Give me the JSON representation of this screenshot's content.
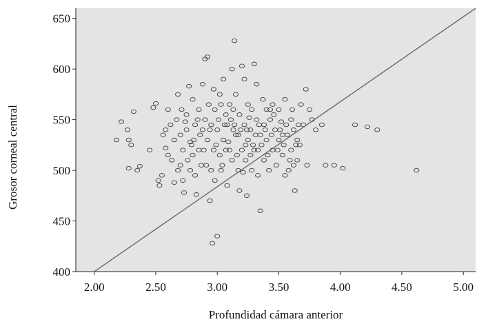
{
  "chart_data": {
    "type": "scatter",
    "title": "",
    "xlabel": "Profundidad cámara anterior",
    "ylabel": "Grosor corneal central",
    "xlim": [
      1.85,
      5.1
    ],
    "ylim": [
      400,
      660
    ],
    "x_ticks": [
      "2.00",
      "2.50",
      "3.00",
      "3.50",
      "4.00",
      "4.50",
      "5.00"
    ],
    "x_tick_values": [
      2.0,
      2.5,
      3.0,
      3.5,
      4.0,
      4.5,
      5.0
    ],
    "y_ticks": [
      "400",
      "450",
      "500",
      "550",
      "600",
      "650"
    ],
    "y_tick_values": [
      400,
      450,
      500,
      550,
      600,
      650
    ],
    "grid": false,
    "background_color": "#e4e4e4",
    "marker_color": "#3a3a3a",
    "line_color": "#6a6a6a",
    "reference_line": {
      "x": [
        2.0,
        5.1
      ],
      "y": [
        400,
        660
      ]
    },
    "series": [
      {
        "points": [
          [
            2.18,
            530
          ],
          [
            2.22,
            548
          ],
          [
            2.27,
            540
          ],
          [
            2.28,
            530
          ],
          [
            2.3,
            525
          ],
          [
            2.32,
            558
          ],
          [
            2.35,
            500
          ],
          [
            2.37,
            504
          ],
          [
            2.28,
            502
          ],
          [
            2.45,
            520
          ],
          [
            2.48,
            562
          ],
          [
            2.5,
            566
          ],
          [
            2.52,
            490
          ],
          [
            2.53,
            485
          ],
          [
            2.55,
            495
          ],
          [
            2.56,
            535
          ],
          [
            2.58,
            540
          ],
          [
            2.58,
            522
          ],
          [
            2.6,
            560
          ],
          [
            2.6,
            515
          ],
          [
            2.62,
            545
          ],
          [
            2.63,
            510
          ],
          [
            2.65,
            488
          ],
          [
            2.65,
            530
          ],
          [
            2.67,
            550
          ],
          [
            2.68,
            575
          ],
          [
            2.7,
            505
          ],
          [
            2.7,
            535
          ],
          [
            2.72,
            520
          ],
          [
            2.72,
            490
          ],
          [
            2.73,
            478
          ],
          [
            2.75,
            555
          ],
          [
            2.75,
            540
          ],
          [
            2.77,
            583
          ],
          [
            2.78,
            528
          ],
          [
            2.78,
            500
          ],
          [
            2.8,
            515
          ],
          [
            2.8,
            570
          ],
          [
            2.82,
            545
          ],
          [
            2.82,
            495
          ],
          [
            2.83,
            476
          ],
          [
            2.85,
            560
          ],
          [
            2.85,
            520
          ],
          [
            2.87,
            505
          ],
          [
            2.88,
            540
          ],
          [
            2.88,
            585
          ],
          [
            2.9,
            610
          ],
          [
            2.9,
            550
          ],
          [
            2.92,
            612
          ],
          [
            2.92,
            530
          ],
          [
            2.93,
            565
          ],
          [
            2.94,
            470
          ],
          [
            2.95,
            500
          ],
          [
            2.95,
            545
          ],
          [
            2.96,
            428
          ],
          [
            2.97,
            520
          ],
          [
            2.98,
            560
          ],
          [
            2.98,
            490
          ],
          [
            3.0,
            435
          ],
          [
            3.0,
            540
          ],
          [
            3.02,
            575
          ],
          [
            3.02,
            515
          ],
          [
            3.03,
            500
          ],
          [
            3.05,
            530
          ],
          [
            3.05,
            590
          ],
          [
            3.07,
            555
          ],
          [
            3.08,
            545
          ],
          [
            3.08,
            485
          ],
          [
            3.1,
            520
          ],
          [
            3.1,
            565
          ],
          [
            3.12,
            600
          ],
          [
            3.12,
            510
          ],
          [
            3.13,
            540
          ],
          [
            3.14,
            628
          ],
          [
            3.15,
            535
          ],
          [
            3.15,
            575
          ],
          [
            3.17,
            500
          ],
          [
            3.18,
            555
          ],
          [
            3.18,
            480
          ],
          [
            3.2,
            603
          ],
          [
            3.2,
            520
          ],
          [
            3.22,
            545
          ],
          [
            3.22,
            590
          ],
          [
            3.23,
            510
          ],
          [
            3.24,
            475
          ],
          [
            3.25,
            565
          ],
          [
            3.25,
            530
          ],
          [
            3.27,
            540
          ],
          [
            3.28,
            500
          ],
          [
            3.28,
            560
          ],
          [
            3.3,
            605
          ],
          [
            3.3,
            520
          ],
          [
            3.32,
            550
          ],
          [
            3.32,
            585
          ],
          [
            3.33,
            495
          ],
          [
            3.35,
            460
          ],
          [
            3.35,
            535
          ],
          [
            3.37,
            570
          ],
          [
            3.38,
            545
          ],
          [
            3.38,
            510
          ],
          [
            3.4,
            560
          ],
          [
            3.4,
            530
          ],
          [
            3.42,
            500
          ],
          [
            3.43,
            550
          ],
          [
            3.45,
            520
          ],
          [
            3.45,
            565
          ],
          [
            3.47,
            540
          ],
          [
            3.48,
            505
          ],
          [
            3.5,
            560
          ],
          [
            3.5,
            530
          ],
          [
            3.52,
            548
          ],
          [
            3.53,
            515
          ],
          [
            3.55,
            570
          ],
          [
            3.55,
            495
          ],
          [
            3.57,
            535
          ],
          [
            3.58,
            500
          ],
          [
            3.6,
            550
          ],
          [
            3.6,
            520
          ],
          [
            3.62,
            540
          ],
          [
            3.63,
            480
          ],
          [
            3.65,
            530
          ],
          [
            3.65,
            510
          ],
          [
            3.67,
            525
          ],
          [
            3.68,
            565
          ],
          [
            3.7,
            545
          ],
          [
            3.72,
            580
          ],
          [
            3.73,
            505
          ],
          [
            3.75,
            560
          ],
          [
            3.77,
            550
          ],
          [
            3.8,
            540
          ],
          [
            3.85,
            545
          ],
          [
            3.88,
            505
          ],
          [
            3.95,
            505
          ],
          [
            4.02,
            502
          ],
          [
            4.12,
            545
          ],
          [
            4.22,
            543
          ],
          [
            4.3,
            540
          ],
          [
            4.62,
            500
          ],
          [
            2.68,
            500
          ],
          [
            2.74,
            548
          ],
          [
            2.86,
            535
          ],
          [
            2.91,
            505
          ],
          [
            2.97,
            580
          ],
          [
            3.04,
            505
          ],
          [
            3.06,
            545
          ],
          [
            3.09,
            528
          ],
          [
            3.11,
            550
          ],
          [
            3.16,
            515
          ],
          [
            3.19,
            540
          ],
          [
            3.21,
            498
          ],
          [
            3.26,
            552
          ],
          [
            3.29,
            525
          ],
          [
            3.31,
            535
          ],
          [
            3.34,
            545
          ],
          [
            3.36,
            525
          ],
          [
            3.39,
            540
          ],
          [
            3.41,
            515
          ],
          [
            3.44,
            535
          ],
          [
            3.46,
            555
          ],
          [
            3.49,
            520
          ],
          [
            3.51,
            540
          ],
          [
            3.54,
            525
          ],
          [
            3.56,
            545
          ],
          [
            3.59,
            510
          ],
          [
            3.61,
            560
          ],
          [
            3.64,
            525
          ],
          [
            3.66,
            545
          ],
          [
            2.71,
            560
          ],
          [
            2.79,
            525
          ],
          [
            2.84,
            550
          ],
          [
            2.89,
            520
          ],
          [
            2.99,
            525
          ],
          [
            3.01,
            550
          ],
          [
            3.07,
            520
          ],
          [
            3.13,
            560
          ],
          [
            3.17,
            535
          ],
          [
            3.23,
            525
          ],
          [
            3.27,
            515
          ],
          [
            2.76,
            510
          ],
          [
            2.81,
            530
          ],
          [
            2.94,
            540
          ],
          [
            3.03,
            565
          ],
          [
            3.14,
            545
          ],
          [
            3.24,
            540
          ],
          [
            3.33,
            520
          ],
          [
            3.43,
            560
          ],
          [
            3.53,
            535
          ],
          [
            3.62,
            505
          ]
        ]
      }
    ]
  }
}
